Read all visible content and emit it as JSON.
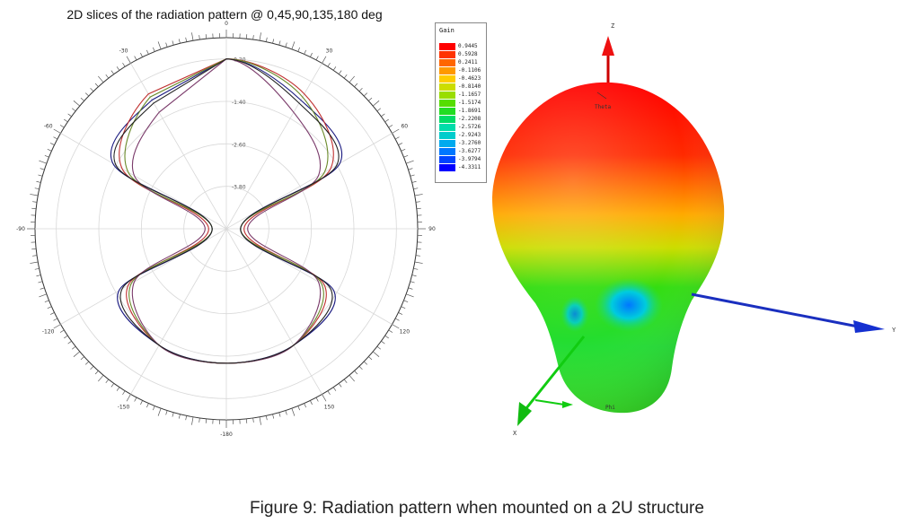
{
  "polar_plot": {
    "title": "2D slices of the radiation pattern @ 0,45,90,135,180 deg",
    "angle_labels": [
      {
        "angle": 0,
        "text": "0"
      },
      {
        "angle": 30,
        "text": "30"
      },
      {
        "angle": 60,
        "text": "60"
      },
      {
        "angle": 90,
        "text": "90"
      },
      {
        "angle": 120,
        "text": "120"
      },
      {
        "angle": 150,
        "text": "150"
      },
      {
        "angle": 180,
        "text": "-180"
      },
      {
        "angle": 210,
        "text": "-150"
      },
      {
        "angle": 240,
        "text": "-120"
      },
      {
        "angle": 270,
        "text": "-90"
      },
      {
        "angle": 300,
        "text": "-60"
      },
      {
        "angle": 330,
        "text": "-30"
      }
    ],
    "ring_labels": [
      "-0.20",
      "-1.40",
      "-2.60",
      "-3.80"
    ]
  },
  "chart_data": {
    "type": "polar",
    "title": "2D slices of the radiation pattern @ 0,45,90,135,180 deg",
    "radial_ticks": [
      -0.2,
      -1.4,
      -2.6,
      -3.8
    ],
    "series": [
      {
        "color": "#1a1a80",
        "points": [
          [
            0,
            -0.2
          ],
          [
            30,
            -0.8
          ],
          [
            60,
            -1.3
          ],
          [
            90,
            -4.6
          ],
          [
            120,
            -1.5
          ],
          [
            150,
            -1.2
          ],
          [
            180,
            -1.2
          ]
        ]
      },
      {
        "color": "#c03030",
        "points": [
          [
            0,
            -0.2
          ],
          [
            30,
            -0.6
          ],
          [
            60,
            -1.6
          ],
          [
            90,
            -4.5
          ],
          [
            120,
            -1.8
          ],
          [
            150,
            -1.2
          ],
          [
            180,
            -1.2
          ]
        ]
      },
      {
        "color": "#6a8a2a",
        "points": [
          [
            0,
            -0.2
          ],
          [
            30,
            -0.7
          ],
          [
            60,
            -1.8
          ],
          [
            90,
            -4.6
          ],
          [
            120,
            -1.9
          ],
          [
            150,
            -1.2
          ],
          [
            180,
            -1.2
          ]
        ]
      },
      {
        "color": "#7a3a6a",
        "points": [
          [
            0,
            -0.2
          ],
          [
            30,
            -1.2
          ],
          [
            60,
            -2.0
          ],
          [
            90,
            -4.4
          ],
          [
            120,
            -2.0
          ],
          [
            150,
            -1.2
          ],
          [
            180,
            -1.2
          ]
        ]
      },
      {
        "color": "#222222",
        "points": [
          [
            0,
            -0.2
          ],
          [
            30,
            -0.9
          ],
          [
            60,
            -1.4
          ],
          [
            90,
            -4.6
          ],
          [
            120,
            -1.6
          ],
          [
            150,
            -1.2
          ],
          [
            180,
            -1.2
          ]
        ]
      }
    ]
  },
  "gain_legend": {
    "title": "Gain",
    "entries": [
      {
        "value": "0.9445",
        "color": "#ff0000"
      },
      {
        "value": "0.5928",
        "color": "#ff3300"
      },
      {
        "value": "0.2411",
        "color": "#ff6600"
      },
      {
        "value": "-0.1106",
        "color": "#ff9900"
      },
      {
        "value": "-0.4623",
        "color": "#ffcc00"
      },
      {
        "value": "-0.8140",
        "color": "#ccdd00"
      },
      {
        "value": "-1.1657",
        "color": "#99dd00"
      },
      {
        "value": "-1.5174",
        "color": "#55dd00"
      },
      {
        "value": "-1.8691",
        "color": "#22dd22"
      },
      {
        "value": "-2.2208",
        "color": "#00dd66"
      },
      {
        "value": "-2.5726",
        "color": "#00ddaa"
      },
      {
        "value": "-2.9243",
        "color": "#00cccc"
      },
      {
        "value": "-3.2760",
        "color": "#00aaee"
      },
      {
        "value": "-3.6277",
        "color": "#0077ff"
      },
      {
        "value": "-3.9794",
        "color": "#0044ff"
      },
      {
        "value": "-4.3311",
        "color": "#0000ff"
      }
    ]
  },
  "pattern3d": {
    "axis_z": "Z",
    "axis_y": "Y",
    "axis_x": "X",
    "theta_label": "Theta",
    "phi_label": "Phi"
  },
  "caption": "Figure 9: Radiation pattern when mounted on a 2U structure"
}
